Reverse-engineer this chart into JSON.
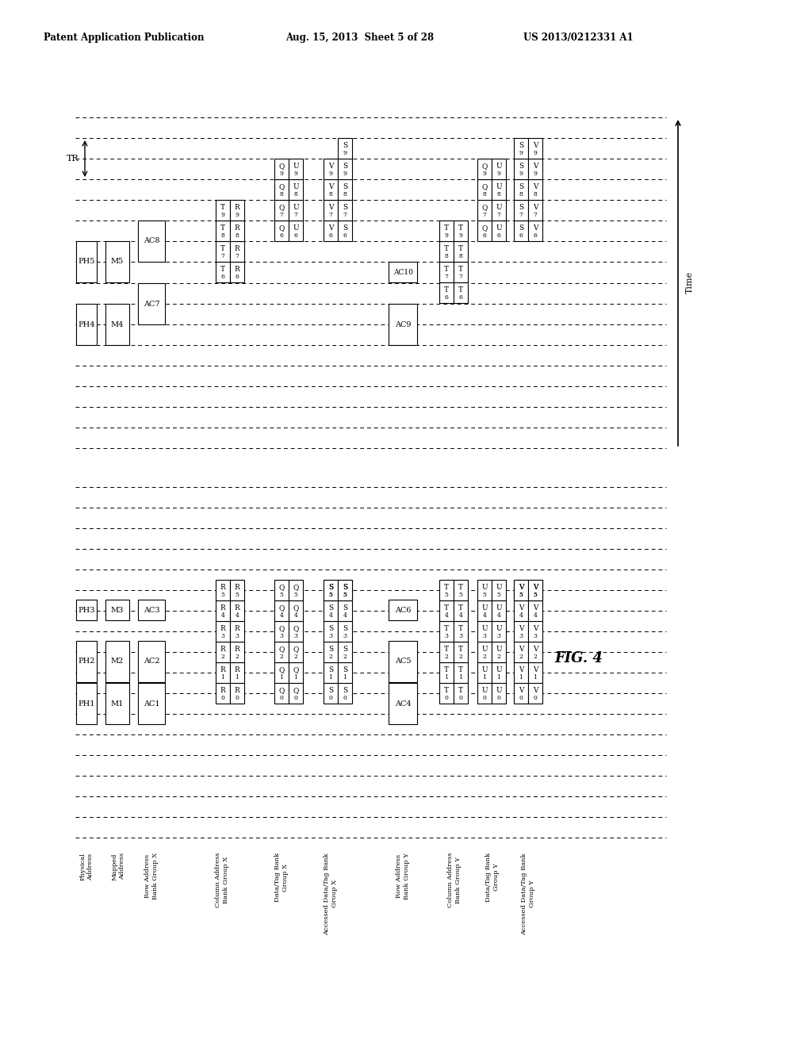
{
  "header_left": "Patent Application Publication",
  "header_mid": "Aug. 15, 2013  Sheet 5 of 28",
  "header_right": "US 2013/0212331 A1",
  "fig_label": "FIG. 4",
  "bg_color": "#ffffff",
  "bottom_labels": [
    "Physical\nAddress",
    "Mapped\nAddress",
    "Row Address\nBank Group X",
    "Column Address\nBank Group X",
    "Data/Tag Bank\nGroup X",
    "Accessed Data/Tag Bank\nGroup X",
    "Row Address\nBank Group Y",
    "Column Address\nBank Group Y",
    "Data/Tag Bank\nGroup Y",
    "Accessed Data/Tag Bank\nGroup Y"
  ]
}
